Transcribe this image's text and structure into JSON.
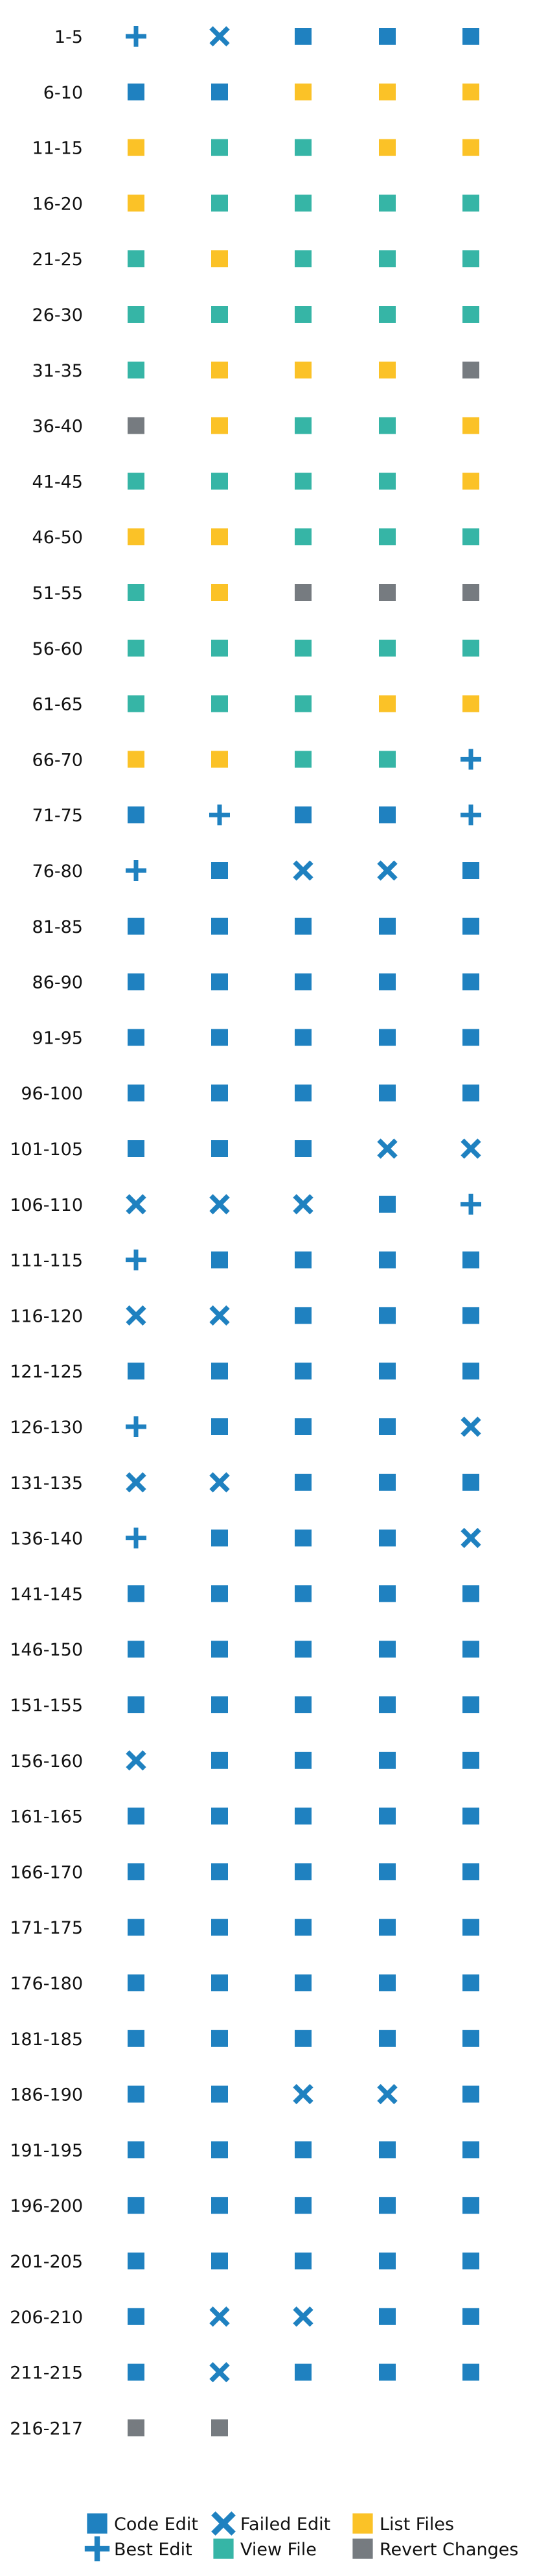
{
  "colors": {
    "code_edit": "#1f81c0",
    "best_edit": "#1f81c0",
    "failed_edit": "#1f81c0",
    "view_file": "#36b5a6",
    "list_files": "#fbc227",
    "revert_changes": "#767b80"
  },
  "chart_data": {
    "type": "table",
    "title": "",
    "row_labels": [
      "1-5",
      "6-10",
      "11-15",
      "16-20",
      "21-25",
      "26-30",
      "31-35",
      "36-40",
      "41-45",
      "46-50",
      "51-55",
      "56-60",
      "61-65",
      "66-70",
      "71-75",
      "76-80",
      "81-85",
      "86-90",
      "91-95",
      "96-100",
      "101-105",
      "106-110",
      "111-115",
      "116-120",
      "121-125",
      "126-130",
      "131-135",
      "136-140",
      "141-145",
      "146-150",
      "151-155",
      "156-160",
      "161-165",
      "166-170",
      "171-175",
      "176-180",
      "181-185",
      "186-190",
      "191-195",
      "196-200",
      "201-205",
      "206-210",
      "211-215",
      "216-217"
    ],
    "rows": [
      [
        "best_edit",
        "failed_edit",
        "code_edit",
        "code_edit",
        "code_edit"
      ],
      [
        "code_edit",
        "code_edit",
        "list_files",
        "list_files",
        "list_files"
      ],
      [
        "list_files",
        "view_file",
        "view_file",
        "list_files",
        "list_files"
      ],
      [
        "list_files",
        "view_file",
        "view_file",
        "view_file",
        "view_file"
      ],
      [
        "view_file",
        "list_files",
        "view_file",
        "view_file",
        "view_file"
      ],
      [
        "view_file",
        "view_file",
        "view_file",
        "view_file",
        "view_file"
      ],
      [
        "view_file",
        "list_files",
        "list_files",
        "list_files",
        "revert_changes"
      ],
      [
        "revert_changes",
        "list_files",
        "view_file",
        "view_file",
        "list_files"
      ],
      [
        "view_file",
        "view_file",
        "view_file",
        "view_file",
        "list_files"
      ],
      [
        "list_files",
        "list_files",
        "view_file",
        "view_file",
        "view_file"
      ],
      [
        "view_file",
        "list_files",
        "revert_changes",
        "revert_changes",
        "revert_changes"
      ],
      [
        "view_file",
        "view_file",
        "view_file",
        "view_file",
        "view_file"
      ],
      [
        "view_file",
        "view_file",
        "view_file",
        "list_files",
        "list_files"
      ],
      [
        "list_files",
        "list_files",
        "view_file",
        "view_file",
        "best_edit"
      ],
      [
        "code_edit",
        "best_edit",
        "code_edit",
        "code_edit",
        "best_edit"
      ],
      [
        "best_edit",
        "code_edit",
        "failed_edit",
        "failed_edit",
        "code_edit"
      ],
      [
        "code_edit",
        "code_edit",
        "code_edit",
        "code_edit",
        "code_edit"
      ],
      [
        "code_edit",
        "code_edit",
        "code_edit",
        "code_edit",
        "code_edit"
      ],
      [
        "code_edit",
        "code_edit",
        "code_edit",
        "code_edit",
        "code_edit"
      ],
      [
        "code_edit",
        "code_edit",
        "code_edit",
        "code_edit",
        "code_edit"
      ],
      [
        "code_edit",
        "code_edit",
        "code_edit",
        "failed_edit",
        "failed_edit"
      ],
      [
        "failed_edit",
        "failed_edit",
        "failed_edit",
        "code_edit",
        "best_edit"
      ],
      [
        "best_edit",
        "code_edit",
        "code_edit",
        "code_edit",
        "code_edit"
      ],
      [
        "failed_edit",
        "failed_edit",
        "code_edit",
        "code_edit",
        "code_edit"
      ],
      [
        "code_edit",
        "code_edit",
        "code_edit",
        "code_edit",
        "code_edit"
      ],
      [
        "best_edit",
        "code_edit",
        "code_edit",
        "code_edit",
        "failed_edit"
      ],
      [
        "failed_edit",
        "failed_edit",
        "code_edit",
        "code_edit",
        "code_edit"
      ],
      [
        "best_edit",
        "code_edit",
        "code_edit",
        "code_edit",
        "failed_edit"
      ],
      [
        "code_edit",
        "code_edit",
        "code_edit",
        "code_edit",
        "code_edit"
      ],
      [
        "code_edit",
        "code_edit",
        "code_edit",
        "code_edit",
        "code_edit"
      ],
      [
        "code_edit",
        "code_edit",
        "code_edit",
        "code_edit",
        "code_edit"
      ],
      [
        "failed_edit",
        "code_edit",
        "code_edit",
        "code_edit",
        "code_edit"
      ],
      [
        "code_edit",
        "code_edit",
        "code_edit",
        "code_edit",
        "code_edit"
      ],
      [
        "code_edit",
        "code_edit",
        "code_edit",
        "code_edit",
        "code_edit"
      ],
      [
        "code_edit",
        "code_edit",
        "code_edit",
        "code_edit",
        "code_edit"
      ],
      [
        "code_edit",
        "code_edit",
        "code_edit",
        "code_edit",
        "code_edit"
      ],
      [
        "code_edit",
        "code_edit",
        "code_edit",
        "code_edit",
        "code_edit"
      ],
      [
        "code_edit",
        "code_edit",
        "failed_edit",
        "failed_edit",
        "code_edit"
      ],
      [
        "code_edit",
        "code_edit",
        "code_edit",
        "code_edit",
        "code_edit"
      ],
      [
        "code_edit",
        "code_edit",
        "code_edit",
        "code_edit",
        "code_edit"
      ],
      [
        "code_edit",
        "code_edit",
        "code_edit",
        "code_edit",
        "code_edit"
      ],
      [
        "code_edit",
        "failed_edit",
        "failed_edit",
        "code_edit",
        "code_edit"
      ],
      [
        "code_edit",
        "failed_edit",
        "code_edit",
        "code_edit",
        "code_edit"
      ],
      [
        "revert_changes",
        "revert_changes"
      ]
    ],
    "legend": {
      "placement": "bottom",
      "items": [
        {
          "key": "code_edit",
          "label": "Code Edit",
          "marker": "square"
        },
        {
          "key": "best_edit",
          "label": "Best Edit",
          "marker": "plus"
        },
        {
          "key": "failed_edit",
          "label": "Failed Edit",
          "marker": "cross"
        },
        {
          "key": "view_file",
          "label": "View File",
          "marker": "square"
        },
        {
          "key": "list_files",
          "label": "List Files",
          "marker": "square"
        },
        {
          "key": "revert_changes",
          "label": "Revert Changes",
          "marker": "square"
        }
      ]
    }
  }
}
